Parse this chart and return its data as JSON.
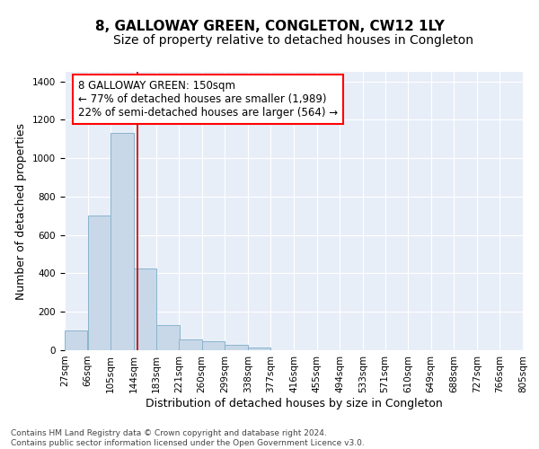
{
  "title": "8, GALLOWAY GREEN, CONGLETON, CW12 1LY",
  "subtitle": "Size of property relative to detached houses in Congleton",
  "xlabel": "Distribution of detached houses by size in Congleton",
  "ylabel": "Number of detached properties",
  "bar_color": "#c8d8e8",
  "bar_edgecolor": "#8ab4cc",
  "background_color": "#e8eef8",
  "grid_color": "#ffffff",
  "bin_edges": [
    27,
    66,
    105,
    144,
    183,
    221,
    260,
    299,
    338,
    377,
    416,
    455,
    494,
    533,
    571,
    610,
    649,
    688,
    727,
    766,
    805
  ],
  "bin_labels": [
    "27sqm",
    "66sqm",
    "105sqm",
    "144sqm",
    "183sqm",
    "221sqm",
    "260sqm",
    "299sqm",
    "338sqm",
    "377sqm",
    "416sqm",
    "455sqm",
    "494sqm",
    "533sqm",
    "571sqm",
    "610sqm",
    "649sqm",
    "688sqm",
    "727sqm",
    "766sqm",
    "805sqm"
  ],
  "bar_heights": [
    105,
    700,
    1130,
    425,
    130,
    55,
    45,
    28,
    12,
    0,
    0,
    0,
    0,
    0,
    0,
    0,
    0,
    0,
    0,
    0
  ],
  "property_line_x": 150,
  "property_line_color": "#cc0000",
  "annotation_box_text": "8 GALLOWAY GREEN: 150sqm\n← 77% of detached houses are smaller (1,989)\n22% of semi-detached houses are larger (564) →",
  "ylim": [
    0,
    1450
  ],
  "footnote": "Contains HM Land Registry data © Crown copyright and database right 2024.\nContains public sector information licensed under the Open Government Licence v3.0.",
  "title_fontsize": 11,
  "subtitle_fontsize": 10,
  "xlabel_fontsize": 9,
  "ylabel_fontsize": 9,
  "tick_fontsize": 7.5,
  "annotation_fontsize": 8.5,
  "footnote_fontsize": 6.5
}
